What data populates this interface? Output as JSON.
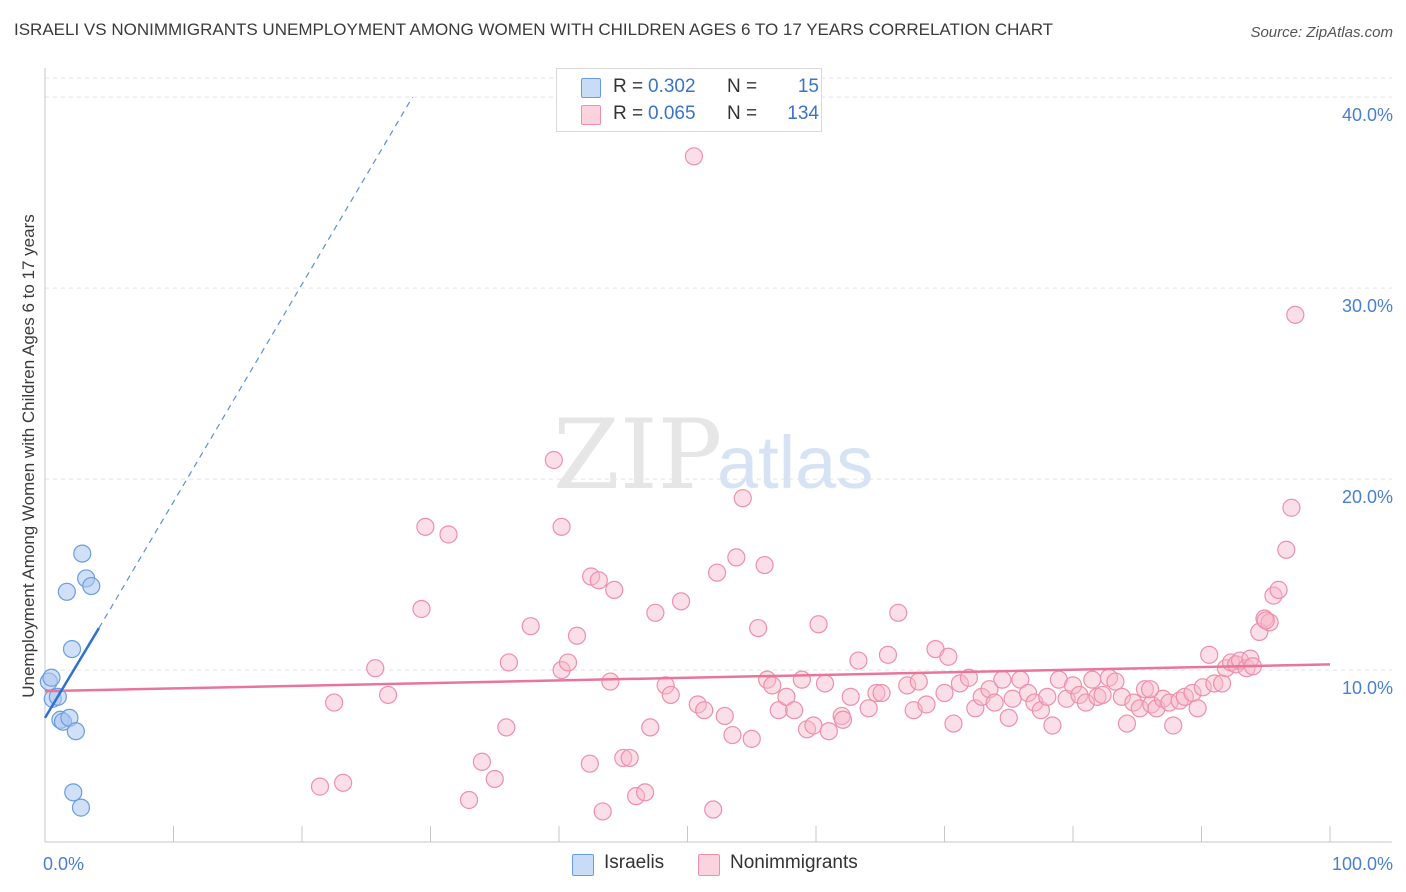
{
  "title": "ISRAELI VS NONIMMIGRANTS UNEMPLOYMENT AMONG WOMEN WITH CHILDREN AGES 6 TO 17 YEARS CORRELATION CHART",
  "source": "Source: ZipAtlas.com",
  "watermark": {
    "zip": "ZIP",
    "atlas": "atlas"
  },
  "legend": {
    "rows": [
      {
        "label": "R =",
        "r": "0.302",
        "n_label": "N =",
        "n": "15",
        "color": "#a9c7ee"
      },
      {
        "label": "R =",
        "r": "0.065",
        "n_label": "N =",
        "n": "134",
        "color": "#f7b8cb"
      }
    ]
  },
  "bottom_legend": [
    {
      "name": "Israelis",
      "color": "#a9c7ee"
    },
    {
      "name": "Nonimmigrants",
      "color": "#f7b8cb"
    }
  ],
  "chart_data": {
    "type": "scatter",
    "title": "ISRAELI VS NONIMMIGRANTS UNEMPLOYMENT AMONG WOMEN WITH CHILDREN AGES 6 TO 17 YEARS CORRELATION CHART",
    "xlabel": "",
    "ylabel": "Unemployment Among Women with Children Ages 6 to 17 years",
    "xlim": [
      0,
      100
    ],
    "ylim": [
      1,
      41
    ],
    "x_tick_labels": [
      "0.0%",
      "100.0%"
    ],
    "y_ticks": [
      10,
      20,
      30,
      40
    ],
    "y_tick_labels": [
      "10.0%",
      "20.0%",
      "30.0%",
      "40.0%"
    ],
    "series": [
      {
        "name": "Israelis",
        "color": "#a9c7ee",
        "stroke": "#6a9de0",
        "points": [
          [
            0.3,
            9.4
          ],
          [
            0.5,
            9.6
          ],
          [
            0.6,
            8.5
          ],
          [
            1.0,
            8.6
          ],
          [
            1.2,
            7.4
          ],
          [
            1.4,
            7.3
          ],
          [
            1.7,
            14.1
          ],
          [
            1.9,
            7.5
          ],
          [
            2.1,
            11.1
          ],
          [
            2.2,
            3.6
          ],
          [
            2.4,
            6.8
          ],
          [
            2.8,
            2.8
          ],
          [
            2.9,
            16.1
          ],
          [
            3.2,
            14.8
          ],
          [
            3.6,
            14.4
          ]
        ],
        "trend": {
          "x0": 0,
          "y0": 7.5,
          "x1": 4.2,
          "y1": 12.2,
          "dash_to_x": 28.6,
          "dash_to_y": 40.0
        }
      },
      {
        "name": "Nonimmigrants",
        "color": "#f7b8cb",
        "stroke": "#ee8fab",
        "points": [
          [
            21.4,
            3.9
          ],
          [
            22.5,
            8.3
          ],
          [
            23.2,
            4.1
          ],
          [
            25.7,
            10.1
          ],
          [
            26.7,
            8.7
          ],
          [
            29.3,
            13.2
          ],
          [
            29.6,
            17.5
          ],
          [
            31.4,
            17.1
          ],
          [
            33.0,
            3.2
          ],
          [
            34.0,
            5.2
          ],
          [
            35.0,
            4.3
          ],
          [
            35.9,
            7.0
          ],
          [
            36.1,
            10.4
          ],
          [
            37.8,
            12.3
          ],
          [
            39.6,
            21.0
          ],
          [
            40.2,
            17.5
          ],
          [
            40.2,
            10.0
          ],
          [
            40.7,
            10.4
          ],
          [
            41.4,
            11.8
          ],
          [
            42.4,
            5.1
          ],
          [
            42.5,
            14.9
          ],
          [
            43.1,
            14.7
          ],
          [
            43.4,
            2.6
          ],
          [
            44.0,
            9.4
          ],
          [
            44.3,
            14.2
          ],
          [
            45.0,
            5.4
          ],
          [
            45.5,
            5.4
          ],
          [
            46.0,
            3.4
          ],
          [
            46.7,
            3.6
          ],
          [
            47.1,
            7.0
          ],
          [
            47.5,
            13.0
          ],
          [
            48.3,
            9.2
          ],
          [
            48.7,
            8.7
          ],
          [
            49.5,
            13.6
          ],
          [
            50.5,
            36.9
          ],
          [
            50.8,
            8.2
          ],
          [
            51.3,
            7.9
          ],
          [
            52.0,
            2.7
          ],
          [
            52.3,
            15.1
          ],
          [
            52.9,
            7.6
          ],
          [
            53.5,
            6.6
          ],
          [
            53.8,
            15.9
          ],
          [
            54.3,
            19.0
          ],
          [
            55.0,
            6.4
          ],
          [
            55.5,
            12.2
          ],
          [
            56.0,
            15.5
          ],
          [
            56.2,
            9.5
          ],
          [
            56.6,
            9.2
          ],
          [
            57.1,
            7.9
          ],
          [
            57.7,
            8.6
          ],
          [
            58.3,
            7.9
          ],
          [
            58.9,
            9.5
          ],
          [
            59.3,
            6.9
          ],
          [
            59.8,
            7.1
          ],
          [
            60.2,
            12.4
          ],
          [
            60.7,
            9.3
          ],
          [
            61.0,
            6.8
          ],
          [
            62.0,
            7.6
          ],
          [
            62.1,
            7.4
          ],
          [
            62.7,
            8.6
          ],
          [
            63.3,
            10.5
          ],
          [
            64.1,
            8.0
          ],
          [
            64.7,
            8.8
          ],
          [
            65.1,
            8.8
          ],
          [
            65.6,
            10.8
          ],
          [
            66.4,
            13.0
          ],
          [
            67.1,
            9.2
          ],
          [
            67.6,
            7.9
          ],
          [
            68.0,
            9.4
          ],
          [
            68.6,
            8.2
          ],
          [
            69.3,
            11.1
          ],
          [
            70.0,
            8.8
          ],
          [
            70.3,
            10.7
          ],
          [
            70.7,
            7.2
          ],
          [
            71.2,
            9.3
          ],
          [
            71.9,
            9.6
          ],
          [
            72.4,
            8.0
          ],
          [
            72.9,
            8.6
          ],
          [
            73.5,
            9.0
          ],
          [
            73.9,
            8.3
          ],
          [
            74.5,
            9.5
          ],
          [
            75.0,
            7.5
          ],
          [
            75.3,
            8.5
          ],
          [
            75.9,
            9.5
          ],
          [
            76.5,
            8.8
          ],
          [
            77.0,
            8.3
          ],
          [
            77.5,
            7.9
          ],
          [
            78.0,
            8.6
          ],
          [
            78.4,
            7.1
          ],
          [
            78.9,
            9.5
          ],
          [
            79.5,
            8.5
          ],
          [
            80.0,
            9.2
          ],
          [
            80.5,
            8.7
          ],
          [
            81.0,
            8.3
          ],
          [
            81.5,
            9.5
          ],
          [
            81.9,
            8.6
          ],
          [
            82.3,
            8.7
          ],
          [
            82.8,
            9.6
          ],
          [
            83.3,
            9.4
          ],
          [
            83.8,
            8.6
          ],
          [
            84.2,
            7.2
          ],
          [
            84.7,
            8.3
          ],
          [
            85.2,
            8.0
          ],
          [
            85.6,
            9.0
          ],
          [
            86.1,
            8.2
          ],
          [
            86.5,
            8.0
          ],
          [
            87.0,
            8.5
          ],
          [
            87.5,
            8.3
          ],
          [
            87.8,
            7.1
          ],
          [
            88.3,
            8.4
          ],
          [
            88.7,
            8.6
          ],
          [
            89.3,
            8.8
          ],
          [
            89.7,
            8.0
          ],
          [
            90.1,
            9.1
          ],
          [
            90.6,
            10.8
          ],
          [
            91.0,
            9.3
          ],
          [
            91.6,
            9.3
          ],
          [
            91.9,
            10.1
          ],
          [
            92.3,
            10.4
          ],
          [
            92.7,
            10.3
          ],
          [
            93.0,
            10.5
          ],
          [
            93.5,
            10.1
          ],
          [
            93.8,
            10.6
          ],
          [
            94.0,
            10.2
          ],
          [
            94.5,
            12.0
          ],
          [
            94.9,
            12.7
          ],
          [
            95.3,
            12.5
          ],
          [
            95.6,
            13.9
          ],
          [
            96.0,
            14.2
          ],
          [
            96.6,
            16.3
          ],
          [
            97.0,
            18.5
          ],
          [
            97.3,
            28.6
          ],
          [
            95.0,
            12.6
          ],
          [
            86.0,
            9.0
          ]
        ],
        "trend": {
          "x0": 0,
          "y0": 8.9,
          "x1": 100,
          "y1": 10.3
        }
      }
    ]
  }
}
